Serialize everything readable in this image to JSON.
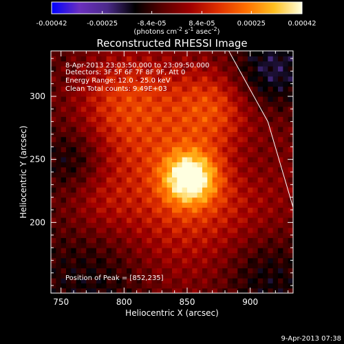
{
  "chart_data": {
    "type": "heatmap",
    "title": "Reconstructed RHESSI Image",
    "xlabel": "Heliocentric X (arcsec)",
    "ylabel": "Heliocentric Y (arcsec)",
    "xlim": [
      742,
      934
    ],
    "ylim": [
      144,
      336
    ],
    "x_ticks": [
      750,
      800,
      850,
      900
    ],
    "y_ticks": [
      200,
      250,
      300
    ],
    "colorbar": {
      "range": [
        -0.00042,
        0.00042
      ],
      "tick_values": [
        -0.00042,
        -0.00025,
        -8.4e-05,
        8.4e-05,
        0.00025,
        0.00042
      ],
      "tick_labels": [
        "-0.00042",
        "-0.00025",
        "-8.4e-05",
        "8.4e-05",
        "0.00025",
        "0.00042"
      ],
      "label_main": "(photons cm",
      "label_exp1": "-2",
      "label_mid": " s",
      "label_exp2": "-1",
      "label_mid2": " asec",
      "label_exp3": "-2",
      "label_end": ")",
      "colors": [
        "#0000ff",
        "#6b2fbf",
        "#4b2a8a",
        "#000000",
        "#5a0000",
        "#a00000",
        "#e03000",
        "#ff7000",
        "#ffc020",
        "#ffffe0"
      ]
    },
    "annotations": [
      "8-Apr-2013 23:03:50.000 to 23:09:50.000",
      "Detectors: 3F 5F 6F 7F 8F 9F, Att 0",
      "Energy Range: 12.0 - 25.0 keV",
      "Clean    Total counts: 9.49E+03"
    ],
    "peak_label": "Position of Peak = [852,235]",
    "peak": [
      852,
      235
    ],
    "peak_value": 0.00042,
    "limb_line": [
      [
        883,
        336
      ],
      [
        914,
        280
      ],
      [
        934,
        212
      ]
    ],
    "background_value": -8e-05
  },
  "footer_timestamp": "9-Apr-2013 07:38"
}
